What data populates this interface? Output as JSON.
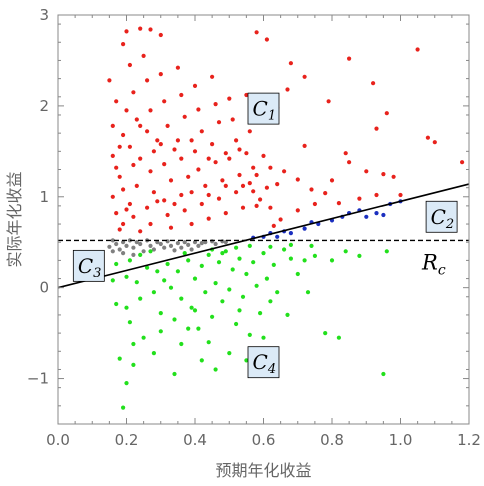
{
  "chart_data": {
    "type": "scatter",
    "xlabel": "预期年化收益",
    "ylabel": "实际年化收益",
    "xlim": [
      0.0,
      1.2
    ],
    "ylim": [
      -1.5,
      3.0
    ],
    "x_ticks": [
      0.0,
      0.2,
      0.4,
      0.6,
      0.8,
      1.0,
      1.2
    ],
    "x_tick_labels": [
      "0.0",
      "0.2",
      "0.4",
      "0.6",
      "0.8",
      "1.0",
      "1.2"
    ],
    "y_ticks": [
      -1,
      0,
      1,
      2,
      3
    ],
    "y_tick_labels": [
      "−1",
      "0",
      "1",
      "2",
      "3"
    ],
    "colors": {
      "C1": "#e8221c",
      "C2": "#1b2fbf",
      "C3": "#808080",
      "C4": "#22e01c",
      "box_fill": "#dbeaf7",
      "axis": "#888888"
    },
    "threshold": {
      "label": "R",
      "label_sub": "c",
      "y": 0.52,
      "style": "dashed"
    },
    "regression_line": {
      "slope": 0.95,
      "intercept": 0.0,
      "x_range": [
        0.0,
        1.2
      ]
    },
    "regions": [
      {
        "name": "C1",
        "label": "C",
        "sub": "1",
        "x": 0.6,
        "y": 1.97
      },
      {
        "name": "C2",
        "label": "C",
        "sub": "2",
        "x": 1.12,
        "y": 0.78
      },
      {
        "name": "C3",
        "label": "C",
        "sub": "3",
        "x": 0.09,
        "y": 0.24
      },
      {
        "name": "C4",
        "label": "C",
        "sub": "4",
        "x": 0.6,
        "y": -0.82
      }
    ],
    "series": [
      {
        "name": "C1",
        "color": "#e8221c",
        "points": [
          [
            0.19,
            2.68
          ],
          [
            0.2,
            2.82
          ],
          [
            0.24,
            2.85
          ],
          [
            0.27,
            2.84
          ],
          [
            0.3,
            2.78
          ],
          [
            0.58,
            2.81
          ],
          [
            0.61,
            2.73
          ],
          [
            0.68,
            2.47
          ],
          [
            0.72,
            2.32
          ],
          [
            0.67,
            2.18
          ],
          [
            0.85,
            2.52
          ],
          [
            0.92,
            2.25
          ],
          [
            0.79,
            2.05
          ],
          [
            0.64,
            1.98
          ],
          [
            0.72,
            1.56
          ],
          [
            0.93,
            1.75
          ],
          [
            0.96,
            1.92
          ],
          [
            1.05,
            2.62
          ],
          [
            1.08,
            1.65
          ],
          [
            1.1,
            1.6
          ],
          [
            1.18,
            1.38
          ],
          [
            0.78,
            1.04
          ],
          [
            0.85,
            1.38
          ],
          [
            0.62,
            1.32
          ],
          [
            0.64,
            1.14
          ],
          [
            0.7,
            1.19
          ],
          [
            0.98,
            1.22
          ],
          [
            0.88,
            0.98
          ],
          [
            0.82,
            0.93
          ],
          [
            0.7,
            0.85
          ],
          [
            0.56,
            1.15
          ],
          [
            0.57,
            1.32
          ],
          [
            0.58,
            0.9
          ],
          [
            0.63,
            0.68
          ],
          [
            0.93,
            1.02
          ],
          [
            0.15,
            2.28
          ],
          [
            0.17,
            2.05
          ],
          [
            0.19,
            1.68
          ],
          [
            0.16,
            1.45
          ],
          [
            0.18,
            1.22
          ],
          [
            0.16,
            1.0
          ],
          [
            0.17,
            0.82
          ],
          [
            0.18,
            0.64
          ],
          [
            0.21,
            2.45
          ],
          [
            0.22,
            2.15
          ],
          [
            0.23,
            1.85
          ],
          [
            0.21,
            1.55
          ],
          [
            0.22,
            1.35
          ],
          [
            0.23,
            1.12
          ],
          [
            0.21,
            0.92
          ],
          [
            0.22,
            0.78
          ],
          [
            0.24,
            0.62
          ],
          [
            0.25,
            2.55
          ],
          [
            0.26,
            2.28
          ],
          [
            0.27,
            1.95
          ],
          [
            0.26,
            1.72
          ],
          [
            0.28,
            1.5
          ],
          [
            0.27,
            1.28
          ],
          [
            0.28,
            1.05
          ],
          [
            0.26,
            0.88
          ],
          [
            0.27,
            0.7
          ],
          [
            0.3,
            2.35
          ],
          [
            0.31,
            2.05
          ],
          [
            0.32,
            1.78
          ],
          [
            0.3,
            1.58
          ],
          [
            0.31,
            1.36
          ],
          [
            0.33,
            1.18
          ],
          [
            0.31,
            0.96
          ],
          [
            0.32,
            0.8
          ],
          [
            0.33,
            0.66
          ],
          [
            0.35,
            2.42
          ],
          [
            0.36,
            2.12
          ],
          [
            0.37,
            1.88
          ],
          [
            0.35,
            1.62
          ],
          [
            0.36,
            1.42
          ],
          [
            0.38,
            1.22
          ],
          [
            0.36,
            1.02
          ],
          [
            0.37,
            0.85
          ],
          [
            0.39,
            0.7
          ],
          [
            0.4,
            2.22
          ],
          [
            0.41,
            1.96
          ],
          [
            0.42,
            1.72
          ],
          [
            0.4,
            1.5
          ],
          [
            0.41,
            1.3
          ],
          [
            0.43,
            1.12
          ],
          [
            0.42,
            0.92
          ],
          [
            0.44,
            0.76
          ],
          [
            0.45,
            2.32
          ],
          [
            0.46,
            2.02
          ],
          [
            0.47,
            1.82
          ],
          [
            0.45,
            1.58
          ],
          [
            0.46,
            1.38
          ],
          [
            0.48,
            1.18
          ],
          [
            0.47,
            0.98
          ],
          [
            0.49,
            0.82
          ],
          [
            0.5,
            2.08
          ],
          [
            0.51,
            1.85
          ],
          [
            0.52,
            1.62
          ],
          [
            0.5,
            1.42
          ],
          [
            0.53,
            1.24
          ],
          [
            0.52,
            1.05
          ],
          [
            0.54,
            0.88
          ],
          [
            0.55,
            2.12
          ],
          [
            0.56,
            1.72
          ],
          [
            0.55,
            1.48
          ],
          [
            0.57,
            1.06
          ],
          [
            0.58,
            1.24
          ],
          [
            0.59,
            0.97
          ],
          [
            0.6,
            1.45
          ],
          [
            0.61,
            1.1
          ],
          [
            0.62,
            0.88
          ],
          [
            0.65,
            0.75
          ],
          [
            0.66,
            1.28
          ],
          [
            0.74,
            1.08
          ],
          [
            0.75,
            0.92
          ],
          [
            0.8,
            1.18
          ],
          [
            0.84,
            1.48
          ],
          [
            0.9,
            1.28
          ],
          [
            0.95,
            1.25
          ],
          [
            1.0,
            1.02
          ],
          [
            0.16,
            1.78
          ],
          [
            0.18,
            1.55
          ],
          [
            0.17,
            1.32
          ],
          [
            0.19,
            1.08
          ],
          [
            0.2,
            0.86
          ],
          [
            0.19,
            0.7
          ],
          [
            0.2,
            1.95
          ],
          [
            0.24,
            1.42
          ],
          [
            0.24,
            1.78
          ],
          [
            0.29,
            1.62
          ],
          [
            0.29,
            0.95
          ],
          [
            0.34,
            1.52
          ],
          [
            0.34,
            0.92
          ],
          [
            0.39,
            1.62
          ],
          [
            0.39,
            1.05
          ],
          [
            0.44,
            1.42
          ],
          [
            0.44,
            1.02
          ],
          [
            0.49,
            1.48
          ],
          [
            0.49,
            1.12
          ],
          [
            0.53,
            1.52
          ],
          [
            0.54,
            1.12
          ]
        ]
      },
      {
        "name": "C2",
        "color": "#1b2fbf",
        "points": [
          [
            0.57,
            0.55
          ],
          [
            0.6,
            0.56
          ],
          [
            0.62,
            0.6
          ],
          [
            0.64,
            0.56
          ],
          [
            0.66,
            0.62
          ],
          [
            0.68,
            0.6
          ],
          [
            0.72,
            0.65
          ],
          [
            0.74,
            0.72
          ],
          [
            0.76,
            0.7
          ],
          [
            0.8,
            0.74
          ],
          [
            0.83,
            0.78
          ],
          [
            0.85,
            0.82
          ],
          [
            0.88,
            0.85
          ],
          [
            0.9,
            0.78
          ],
          [
            0.93,
            0.82
          ],
          [
            0.95,
            0.8
          ],
          [
            0.97,
            0.92
          ],
          [
            1.0,
            0.95
          ]
        ]
      },
      {
        "name": "C3",
        "color": "#808080",
        "points": [
          [
            0.15,
            0.45
          ],
          [
            0.16,
            0.52
          ],
          [
            0.17,
            0.48
          ],
          [
            0.18,
            0.42
          ],
          [
            0.19,
            0.5
          ],
          [
            0.2,
            0.46
          ],
          [
            0.21,
            0.52
          ],
          [
            0.22,
            0.44
          ],
          [
            0.23,
            0.5
          ],
          [
            0.24,
            0.48
          ],
          [
            0.26,
            0.52
          ],
          [
            0.27,
            0.46
          ],
          [
            0.29,
            0.5
          ],
          [
            0.3,
            0.48
          ],
          [
            0.32,
            0.51
          ],
          [
            0.33,
            0.46
          ],
          [
            0.35,
            0.49
          ],
          [
            0.37,
            0.5
          ],
          [
            0.38,
            0.47
          ],
          [
            0.4,
            0.5
          ],
          [
            0.42,
            0.49
          ],
          [
            0.43,
            0.5
          ],
          [
            0.45,
            0.51
          ],
          [
            0.46,
            0.48
          ],
          [
            0.48,
            0.51
          ],
          [
            0.49,
            0.5
          ],
          [
            0.16,
            0.4
          ],
          [
            0.19,
            0.38
          ],
          [
            0.22,
            0.36
          ],
          [
            0.25,
            0.4
          ],
          [
            0.28,
            0.42
          ],
          [
            0.31,
            0.44
          ],
          [
            0.34,
            0.41
          ],
          [
            0.36,
            0.44
          ],
          [
            0.39,
            0.42
          ],
          [
            0.41,
            0.46
          ]
        ]
      },
      {
        "name": "C4",
        "color": "#22e01c",
        "points": [
          [
            0.19,
            -1.32
          ],
          [
            0.2,
            -1.05
          ],
          [
            0.18,
            -0.78
          ],
          [
            0.22,
            -0.62
          ],
          [
            0.21,
            -0.38
          ],
          [
            0.17,
            -0.18
          ],
          [
            0.16,
            0.08
          ],
          [
            0.17,
            0.26
          ],
          [
            0.2,
            0.12
          ],
          [
            0.21,
            0.3
          ],
          [
            0.23,
            0.06
          ],
          [
            0.24,
            -0.12
          ],
          [
            0.26,
            0.22
          ],
          [
            0.28,
            -0.05
          ],
          [
            0.29,
            0.18
          ],
          [
            0.3,
            -0.28
          ],
          [
            0.32,
            0.26
          ],
          [
            0.33,
            0.0
          ],
          [
            0.34,
            -0.35
          ],
          [
            0.35,
            0.18
          ],
          [
            0.36,
            -0.12
          ],
          [
            0.38,
            0.3
          ],
          [
            0.39,
            -0.22
          ],
          [
            0.4,
            0.1
          ],
          [
            0.41,
            -0.45
          ],
          [
            0.42,
            0.24
          ],
          [
            0.43,
            -0.05
          ],
          [
            0.44,
            0.36
          ],
          [
            0.45,
            -0.32
          ],
          [
            0.46,
            0.05
          ],
          [
            0.47,
            0.28
          ],
          [
            0.48,
            -0.15
          ],
          [
            0.49,
            0.4
          ],
          [
            0.5,
            -0.02
          ],
          [
            0.51,
            0.2
          ],
          [
            0.52,
            -0.4
          ],
          [
            0.53,
            0.32
          ],
          [
            0.54,
            -0.1
          ],
          [
            0.55,
            0.15
          ],
          [
            0.56,
            -0.52
          ],
          [
            0.57,
            0.28
          ],
          [
            0.58,
            0.02
          ],
          [
            0.59,
            -0.28
          ],
          [
            0.6,
            0.38
          ],
          [
            0.61,
            0.1
          ],
          [
            0.62,
            -0.15
          ],
          [
            0.63,
            0.25
          ],
          [
            0.64,
            -0.05
          ],
          [
            0.66,
            0.42
          ],
          [
            0.67,
            -0.3
          ],
          [
            0.68,
            0.32
          ],
          [
            0.7,
            0.15
          ],
          [
            0.72,
            0.3
          ],
          [
            0.73,
            -0.05
          ],
          [
            0.75,
            0.35
          ],
          [
            0.78,
            -0.5
          ],
          [
            0.8,
            0.3
          ],
          [
            0.82,
            -0.55
          ],
          [
            0.84,
            0.4
          ],
          [
            0.88,
            0.35
          ],
          [
            0.95,
            -0.95
          ],
          [
            0.96,
            0.4
          ],
          [
            0.3,
            -0.48
          ],
          [
            0.25,
            -0.55
          ],
          [
            0.36,
            -0.62
          ],
          [
            0.42,
            -0.8
          ],
          [
            0.5,
            -0.72
          ],
          [
            0.55,
            -0.8
          ],
          [
            0.63,
            -0.7
          ],
          [
            0.46,
            -0.9
          ],
          [
            0.28,
            -0.72
          ],
          [
            0.34,
            -0.95
          ],
          [
            0.58,
            -0.95
          ],
          [
            0.6,
            -0.55
          ],
          [
            0.44,
            -0.6
          ],
          [
            0.38,
            -0.45
          ],
          [
            0.2,
            -0.22
          ],
          [
            0.24,
            0.36
          ],
          [
            0.27,
            0.4
          ],
          [
            0.31,
            0.08
          ],
          [
            0.37,
            0.38
          ],
          [
            0.45,
            0.42
          ],
          [
            0.52,
            0.44
          ],
          [
            0.48,
            0.38
          ],
          [
            0.56,
            0.46
          ],
          [
            0.62,
            0.45
          ],
          [
            0.68,
            0.47
          ],
          [
            0.74,
            0.46
          ],
          [
            0.22,
            -0.85
          ],
          [
            0.4,
            -0.25
          ],
          [
            0.53,
            -0.25
          ]
        ]
      }
    ]
  }
}
